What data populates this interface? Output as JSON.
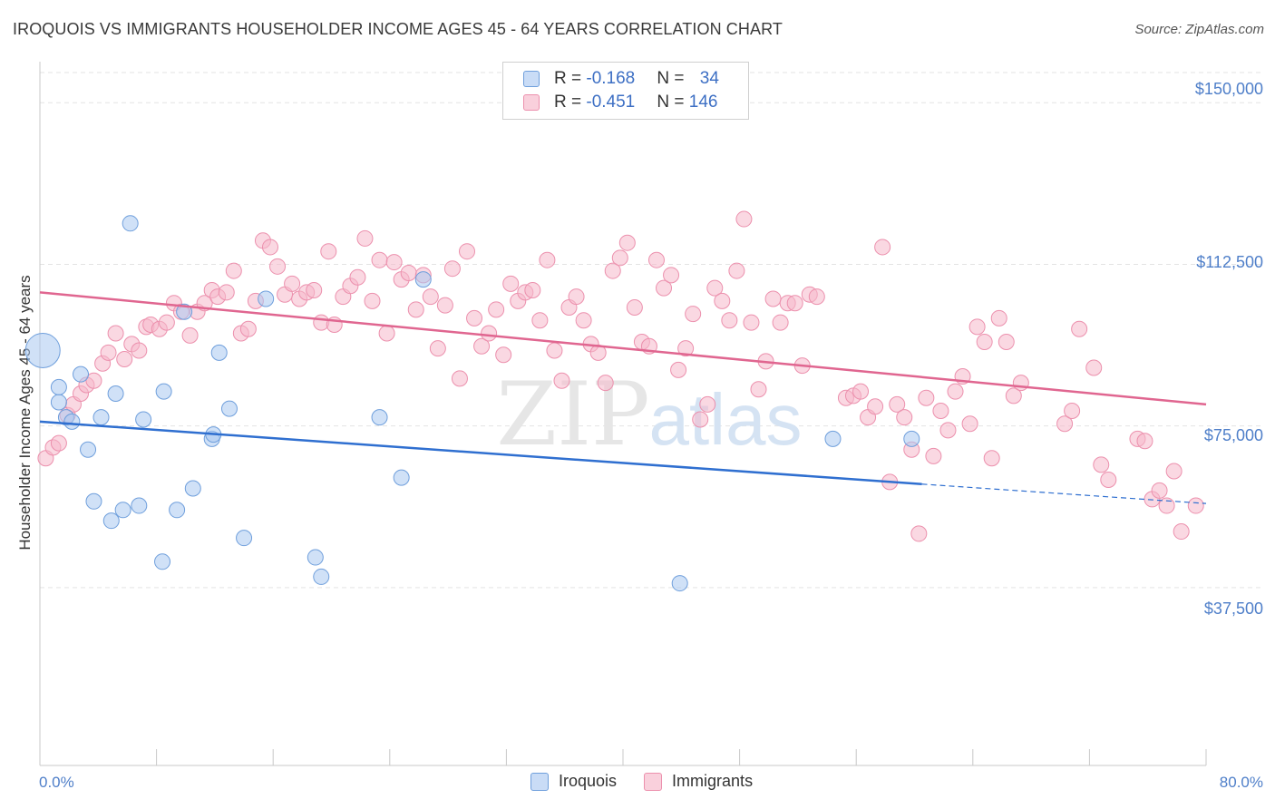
{
  "title": "IROQUOIS VS IMMIGRANTS HOUSEHOLDER INCOME AGES 45 - 64 YEARS CORRELATION CHART",
  "source": "Source: ZipAtlas.com",
  "watermark": {
    "zip": "ZIP",
    "atlas": "atlas"
  },
  "legend": {
    "rows": [
      {
        "r_label": "R = ",
        "r_value": "-0.168",
        "n_label": "N = ",
        "n_value": "34"
      },
      {
        "r_label": "R = ",
        "r_value": "-0.451",
        "n_label": "N = ",
        "n_value": "146"
      }
    ]
  },
  "colors": {
    "iroquois_fill": "#a9c8f0",
    "iroquois_stroke": "#6f9fdc",
    "iroquois_line": "#2f6fd0",
    "immigrants_fill": "#f6b8ca",
    "immigrants_stroke": "#ec90ad",
    "immigrants_line": "#e06690",
    "axis_text": "#4f7fc9",
    "grid": "#e3e3e3"
  },
  "chart_data": {
    "type": "scatter",
    "title": "IROQUOIS VS IMMIGRANTS HOUSEHOLDER INCOME AGES 45 - 64 YEARS CORRELATION CHART",
    "xlabel": "",
    "ylabel": "Householder Income Ages 45 - 64 years",
    "xlim": [
      0,
      80
    ],
    "ylim": [
      0,
      157000
    ],
    "x_tick_labels": [
      "0.0%",
      "80.0%"
    ],
    "y_ticks": [
      37500,
      75000,
      112500,
      150000
    ],
    "y_tick_labels": [
      "$37,500",
      "$75,000",
      "$112,500",
      "$150,000"
    ],
    "grid": true,
    "legend_position": "top-center",
    "series": [
      {
        "name": "Iroquois",
        "R": -0.168,
        "N": 34,
        "trend": {
          "x0": 0,
          "y0": 76000,
          "x1": 60.5,
          "y1": 61500,
          "dashed_to_x": 80,
          "dashed_to_y": 57000
        },
        "points": [
          [
            0.2,
            92500
          ],
          [
            1.3,
            80500
          ],
          [
            1.3,
            84000
          ],
          [
            1.8,
            77000
          ],
          [
            2.2,
            76000
          ],
          [
            2.8,
            87000
          ],
          [
            3.3,
            69500
          ],
          [
            3.7,
            57500
          ],
          [
            4.2,
            77000
          ],
          [
            4.9,
            53000
          ],
          [
            5.2,
            82500
          ],
          [
            5.7,
            55500
          ],
          [
            6.2,
            122000
          ],
          [
            6.8,
            56500
          ],
          [
            7.1,
            76500
          ],
          [
            8.4,
            43500
          ],
          [
            8.5,
            83000
          ],
          [
            9.4,
            55500
          ],
          [
            9.9,
            101500
          ],
          [
            10.5,
            60500
          ],
          [
            11.8,
            72000
          ],
          [
            11.9,
            73000
          ],
          [
            12.3,
            92000
          ],
          [
            13.0,
            79000
          ],
          [
            14.0,
            49000
          ],
          [
            15.5,
            104500
          ],
          [
            18.9,
            44500
          ],
          [
            19.3,
            40000
          ],
          [
            23.3,
            77000
          ],
          [
            24.8,
            63000
          ],
          [
            26.3,
            109000
          ],
          [
            43.9,
            38500
          ],
          [
            54.4,
            72000
          ],
          [
            59.8,
            72000
          ]
        ]
      },
      {
        "name": "Immigrants",
        "R": -0.451,
        "N": 146,
        "trend": {
          "x0": 0,
          "y0": 106000,
          "x1": 80,
          "y1": 80000
        },
        "points": [
          [
            0.4,
            67500
          ],
          [
            0.9,
            70000
          ],
          [
            1.3,
            71000
          ],
          [
            1.9,
            77500
          ],
          [
            2.3,
            80000
          ],
          [
            2.8,
            82500
          ],
          [
            3.2,
            84500
          ],
          [
            3.7,
            85500
          ],
          [
            4.3,
            89500
          ],
          [
            4.7,
            92000
          ],
          [
            5.2,
            96500
          ],
          [
            5.8,
            90500
          ],
          [
            6.3,
            94000
          ],
          [
            6.8,
            92500
          ],
          [
            7.3,
            98000
          ],
          [
            7.6,
            98500
          ],
          [
            8.2,
            97500
          ],
          [
            8.7,
            99000
          ],
          [
            9.2,
            103500
          ],
          [
            9.7,
            101500
          ],
          [
            10.3,
            96000
          ],
          [
            10.8,
            101500
          ],
          [
            11.3,
            103500
          ],
          [
            11.8,
            106500
          ],
          [
            12.2,
            105000
          ],
          [
            12.8,
            106000
          ],
          [
            13.3,
            111000
          ],
          [
            13.8,
            96500
          ],
          [
            14.3,
            97500
          ],
          [
            14.8,
            104000
          ],
          [
            15.3,
            118000
          ],
          [
            15.8,
            116500
          ],
          [
            16.3,
            112000
          ],
          [
            16.8,
            105500
          ],
          [
            17.3,
            108000
          ],
          [
            17.8,
            104500
          ],
          [
            18.3,
            106000
          ],
          [
            18.8,
            106500
          ],
          [
            19.3,
            99000
          ],
          [
            19.8,
            115500
          ],
          [
            20.2,
            98500
          ],
          [
            20.8,
            105000
          ],
          [
            21.3,
            107500
          ],
          [
            21.8,
            109500
          ],
          [
            22.3,
            118500
          ],
          [
            22.8,
            104000
          ],
          [
            23.3,
            113500
          ],
          [
            23.8,
            96500
          ],
          [
            24.3,
            113000
          ],
          [
            24.8,
            109000
          ],
          [
            25.3,
            110500
          ],
          [
            25.8,
            102000
          ],
          [
            26.3,
            110000
          ],
          [
            26.8,
            105000
          ],
          [
            27.3,
            93000
          ],
          [
            27.8,
            103000
          ],
          [
            28.3,
            111500
          ],
          [
            28.8,
            86000
          ],
          [
            29.3,
            115500
          ],
          [
            29.8,
            100000
          ],
          [
            30.3,
            93500
          ],
          [
            30.8,
            96500
          ],
          [
            31.3,
            102000
          ],
          [
            31.8,
            91500
          ],
          [
            32.3,
            108000
          ],
          [
            32.8,
            104000
          ],
          [
            33.3,
            106000
          ],
          [
            33.8,
            106500
          ],
          [
            34.3,
            99500
          ],
          [
            34.8,
            113500
          ],
          [
            35.3,
            92500
          ],
          [
            35.8,
            85500
          ],
          [
            36.3,
            102500
          ],
          [
            36.8,
            105000
          ],
          [
            37.3,
            99500
          ],
          [
            37.8,
            94000
          ],
          [
            38.3,
            92000
          ],
          [
            38.8,
            85000
          ],
          [
            39.3,
            111000
          ],
          [
            39.8,
            114000
          ],
          [
            40.3,
            117500
          ],
          [
            40.8,
            102500
          ],
          [
            41.3,
            94500
          ],
          [
            41.8,
            93500
          ],
          [
            42.3,
            113500
          ],
          [
            42.8,
            107000
          ],
          [
            43.3,
            110000
          ],
          [
            43.8,
            88000
          ],
          [
            44.3,
            93000
          ],
          [
            44.8,
            101000
          ],
          [
            45.3,
            76500
          ],
          [
            45.8,
            80000
          ],
          [
            46.3,
            107000
          ],
          [
            46.8,
            104000
          ],
          [
            47.3,
            99500
          ],
          [
            47.8,
            111000
          ],
          [
            48.3,
            123000
          ],
          [
            48.8,
            99000
          ],
          [
            49.3,
            83500
          ],
          [
            49.8,
            90000
          ],
          [
            50.3,
            104500
          ],
          [
            50.8,
            99000
          ],
          [
            51.3,
            103500
          ],
          [
            51.8,
            103500
          ],
          [
            52.3,
            89000
          ],
          [
            52.8,
            105500
          ],
          [
            53.3,
            105000
          ],
          [
            55.3,
            81500
          ],
          [
            55.8,
            82000
          ],
          [
            56.3,
            83000
          ],
          [
            56.8,
            77000
          ],
          [
            57.3,
            79500
          ],
          [
            57.8,
            116500
          ],
          [
            58.3,
            62000
          ],
          [
            58.8,
            80000
          ],
          [
            59.3,
            77000
          ],
          [
            59.8,
            69500
          ],
          [
            60.3,
            50000
          ],
          [
            60.8,
            81500
          ],
          [
            61.3,
            68000
          ],
          [
            61.8,
            78500
          ],
          [
            62.3,
            74000
          ],
          [
            62.8,
            83000
          ],
          [
            63.3,
            86500
          ],
          [
            63.8,
            75500
          ],
          [
            64.3,
            98000
          ],
          [
            64.8,
            94500
          ],
          [
            65.3,
            67500
          ],
          [
            65.8,
            100000
          ],
          [
            66.3,
            94500
          ],
          [
            66.8,
            82000
          ],
          [
            67.3,
            85000
          ],
          [
            70.3,
            75500
          ],
          [
            70.8,
            78500
          ],
          [
            71.3,
            97500
          ],
          [
            72.3,
            88500
          ],
          [
            72.8,
            66000
          ],
          [
            73.3,
            62500
          ],
          [
            75.3,
            72000
          ],
          [
            75.8,
            71500
          ],
          [
            76.3,
            58000
          ],
          [
            76.8,
            60000
          ],
          [
            77.3,
            56500
          ],
          [
            77.8,
            64500
          ],
          [
            78.3,
            50500
          ],
          [
            79.3,
            56500
          ]
        ]
      }
    ]
  },
  "bottom_legend": [
    "Iroquois",
    "Immigrants"
  ]
}
